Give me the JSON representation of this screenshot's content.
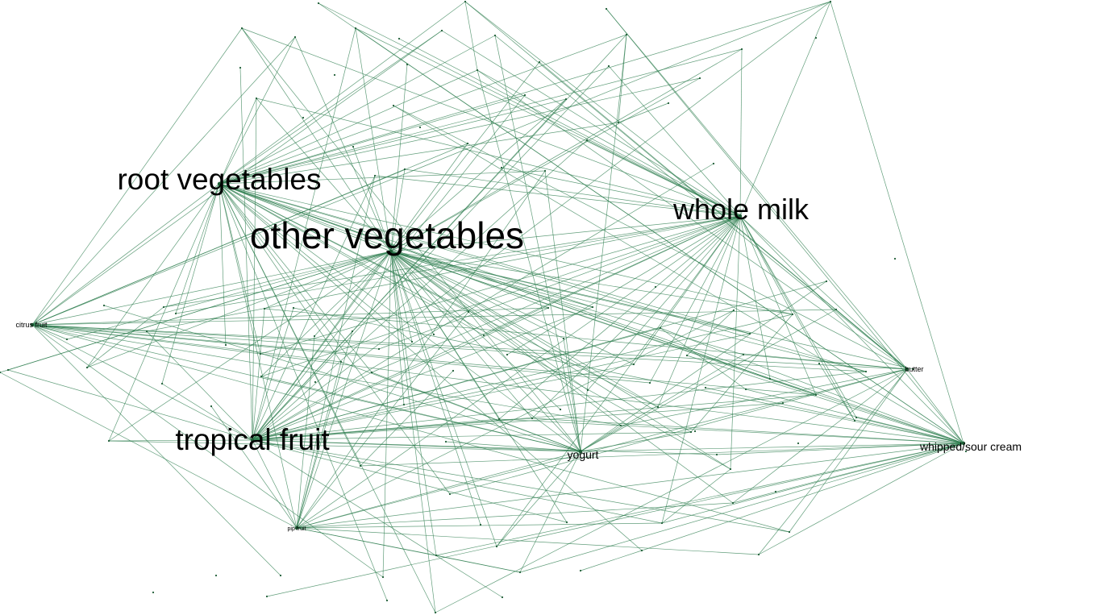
{
  "graph": {
    "edge_color": "#2e7d4f",
    "node_color": "#1d5c35",
    "label_color": "#000000",
    "hubs": [
      {
        "id": "other_vegetables",
        "label": "other vegetables",
        "size": 46
      },
      {
        "id": "root_vegetables",
        "label": "root vegetables",
        "size": 37
      },
      {
        "id": "tropical_fruit",
        "label": "tropical fruit",
        "size": 37
      },
      {
        "id": "whole_milk",
        "label": "whole milk",
        "size": 36
      },
      {
        "id": "yogurt",
        "label": "yogurt",
        "size": 14
      },
      {
        "id": "whipped_sour_cream",
        "label": "whipped/sour cream",
        "size": 14
      },
      {
        "id": "citrus_fruit",
        "label": "citrus fruit",
        "size": 9
      },
      {
        "id": "butter",
        "label": "butter",
        "size": 9
      },
      {
        "id": "pip_fruit",
        "label": "pip fruit",
        "size": 7
      }
    ]
  }
}
